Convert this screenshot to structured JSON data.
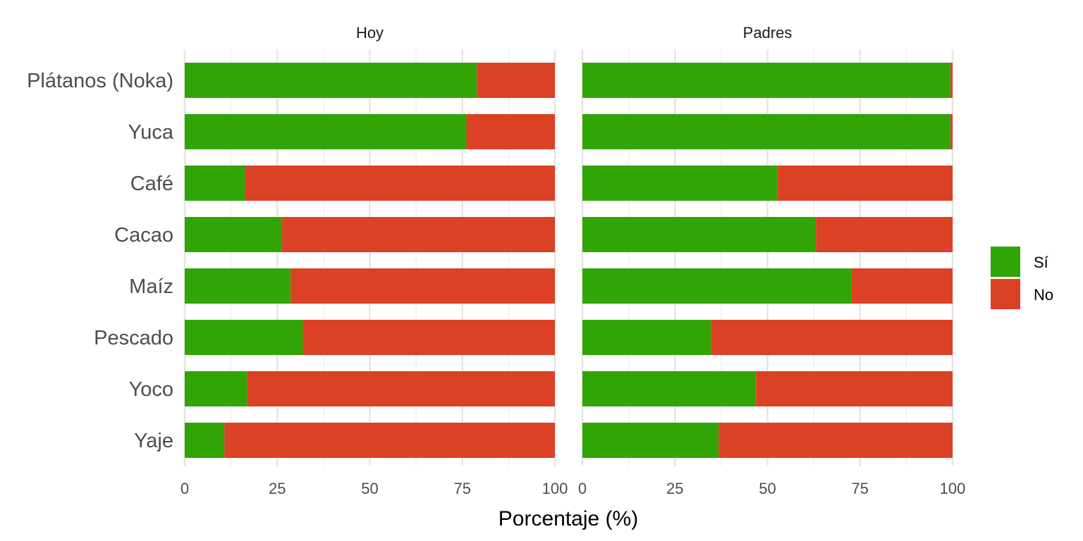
{
  "chart_data": {
    "type": "bar",
    "orientation": "horizontal",
    "stacked": true,
    "xlabel": "Porcentaje (%)",
    "ylabel": "",
    "xlim": [
      0,
      100
    ],
    "xticks": [
      "0",
      "25",
      "50",
      "75",
      "100"
    ],
    "grid": true,
    "categories": [
      "Plátanos (Noka)",
      "Yuca",
      "Café",
      "Cacao",
      "Maíz",
      "Pescado",
      "Yoco",
      "Yaje"
    ],
    "legend": {
      "position": "right",
      "entries": [
        "Sí",
        "No"
      ]
    },
    "colors": {
      "Sí": "#31a505",
      "No": "#db4125"
    },
    "panels": [
      {
        "title": "Hoy",
        "series": [
          {
            "name": "Sí",
            "values": [
              78.9,
              76.1,
              16.3,
              26.3,
              28.6,
              31.9,
              16.8,
              10.7
            ]
          },
          {
            "name": "No",
            "values": [
              21.1,
              23.9,
              83.7,
              73.7,
              71.4,
              68.1,
              83.2,
              89.3
            ]
          }
        ]
      },
      {
        "title": "Padres",
        "series": [
          {
            "name": "Sí",
            "values": [
              99.4,
              99.4,
              52.6,
              63.1,
              72.6,
              34.7,
              46.9,
              36.8
            ]
          },
          {
            "name": "No",
            "values": [
              0.6,
              0.6,
              47.4,
              36.9,
              27.4,
              65.3,
              53.1,
              63.2
            ]
          }
        ]
      }
    ]
  }
}
